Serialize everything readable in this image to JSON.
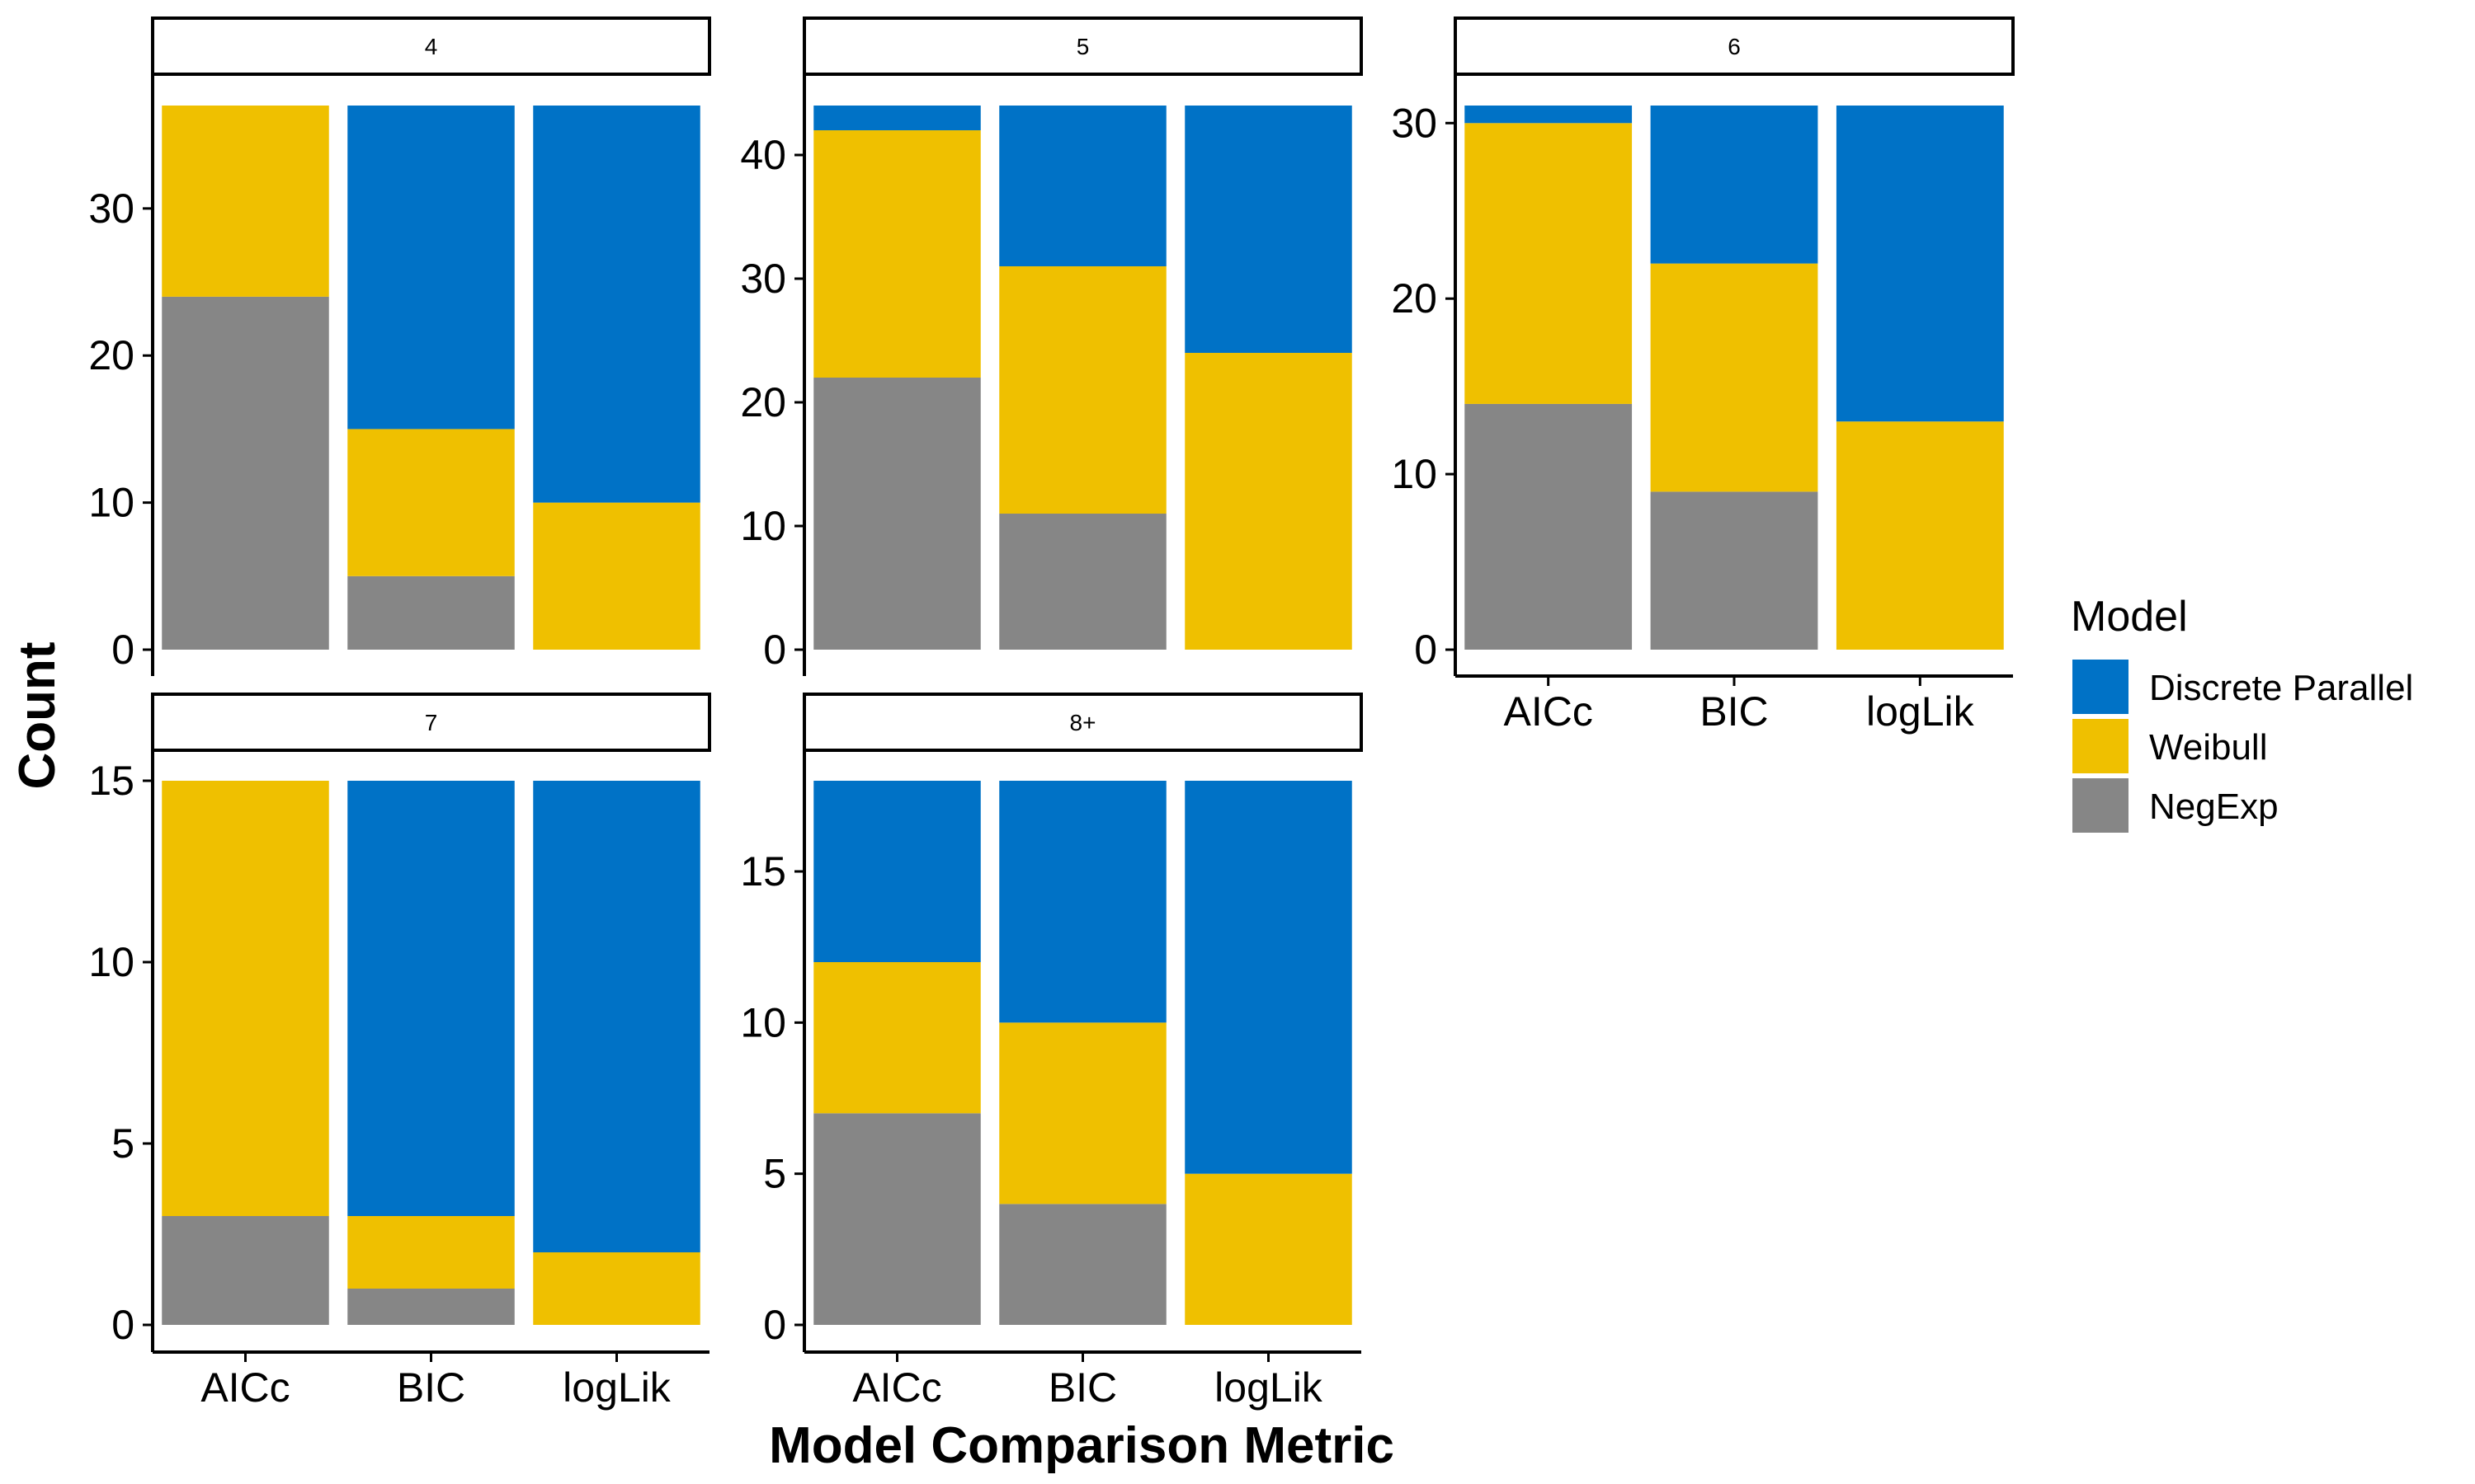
{
  "chart_data": {
    "type": "bar",
    "stacked": true,
    "xlabel": "Model Comparison Metric",
    "ylabel": "Count",
    "categories": [
      "AICc",
      "BIC",
      "logLik"
    ],
    "colors": {
      "Discrete Parallel": "#0072C6",
      "Weibull": "#EFC000",
      "NegExp": "#868686"
    },
    "legend": {
      "title": "Model",
      "placement": "right",
      "entries": [
        "Discrete Parallel",
        "Weibull",
        "NegExp"
      ]
    },
    "grid": false,
    "panels": [
      {
        "label": "4",
        "ylim": [
          0,
          37
        ],
        "yticks": [
          0,
          10,
          20,
          30
        ],
        "series": [
          {
            "name": "NegExp",
            "values": [
              24,
              5,
              0
            ]
          },
          {
            "name": "Weibull",
            "values": [
              13,
              10,
              10
            ]
          },
          {
            "name": "Discrete Parallel",
            "values": [
              0,
              22,
              27
            ]
          }
        ]
      },
      {
        "label": "5",
        "ylim": [
          0,
          44
        ],
        "yticks": [
          0,
          10,
          20,
          30,
          40
        ],
        "series": [
          {
            "name": "NegExp",
            "values": [
              22,
              11,
              0
            ]
          },
          {
            "name": "Weibull",
            "values": [
              20,
              20,
              24
            ]
          },
          {
            "name": "Discrete Parallel",
            "values": [
              2,
              13,
              20
            ]
          }
        ]
      },
      {
        "label": "6",
        "ylim": [
          0,
          31
        ],
        "yticks": [
          0,
          10,
          20,
          30
        ],
        "series": [
          {
            "name": "NegExp",
            "values": [
              14,
              9,
              0
            ]
          },
          {
            "name": "Weibull",
            "values": [
              16,
              13,
              13
            ]
          },
          {
            "name": "Discrete Parallel",
            "values": [
              1,
              9,
              18
            ]
          }
        ]
      },
      {
        "label": "7",
        "ylim": [
          0,
          15
        ],
        "yticks": [
          0,
          5,
          10,
          15
        ],
        "series": [
          {
            "name": "NegExp",
            "values": [
              3,
              1,
              0
            ]
          },
          {
            "name": "Weibull",
            "values": [
              12,
              2,
              2
            ]
          },
          {
            "name": "Discrete Parallel",
            "values": [
              0,
              12,
              13
            ]
          }
        ]
      },
      {
        "label": "8+",
        "ylim": [
          0,
          18
        ],
        "yticks": [
          0,
          5,
          10,
          15
        ],
        "series": [
          {
            "name": "NegExp",
            "values": [
              7,
              4,
              0
            ]
          },
          {
            "name": "Weibull",
            "values": [
              5,
              6,
              5
            ]
          },
          {
            "name": "Discrete Parallel",
            "values": [
              6,
              8,
              13
            ]
          }
        ]
      }
    ]
  }
}
